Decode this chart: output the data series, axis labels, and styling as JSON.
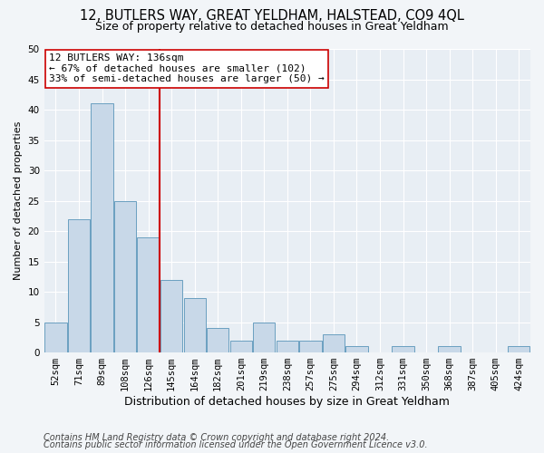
{
  "title1": "12, BUTLERS WAY, GREAT YELDHAM, HALSTEAD, CO9 4QL",
  "title2": "Size of property relative to detached houses in Great Yeldham",
  "xlabel": "Distribution of detached houses by size in Great Yeldham",
  "ylabel": "Number of detached properties",
  "categories": [
    "52sqm",
    "71sqm",
    "89sqm",
    "108sqm",
    "126sqm",
    "145sqm",
    "164sqm",
    "182sqm",
    "201sqm",
    "219sqm",
    "238sqm",
    "257sqm",
    "275sqm",
    "294sqm",
    "312sqm",
    "331sqm",
    "350sqm",
    "368sqm",
    "387sqm",
    "405sqm",
    "424sqm"
  ],
  "values": [
    5,
    22,
    41,
    25,
    19,
    12,
    9,
    4,
    2,
    5,
    2,
    2,
    3,
    1,
    0,
    1,
    0,
    1,
    0,
    0,
    1
  ],
  "bar_color": "#c8d8e8",
  "bar_edge_color": "#6a9fc0",
  "vline_color": "#cc0000",
  "annotation_text": "12 BUTLERS WAY: 136sqm\n← 67% of detached houses are smaller (102)\n33% of semi-detached houses are larger (50) →",
  "annotation_box_facecolor": "#ffffff",
  "annotation_box_edgecolor": "#cc0000",
  "ylim": [
    0,
    50
  ],
  "yticks": [
    0,
    5,
    10,
    15,
    20,
    25,
    30,
    35,
    40,
    45,
    50
  ],
  "footer1": "Contains HM Land Registry data © Crown copyright and database right 2024.",
  "footer2": "Contains public sector information licensed under the Open Government Licence v3.0.",
  "background_color": "#f2f5f8",
  "plot_background_color": "#e8eef4",
  "grid_color": "#ffffff",
  "title1_fontsize": 10.5,
  "title2_fontsize": 9,
  "xlabel_fontsize": 9,
  "ylabel_fontsize": 8,
  "tick_fontsize": 7.5,
  "annotation_fontsize": 8,
  "footer_fontsize": 7
}
